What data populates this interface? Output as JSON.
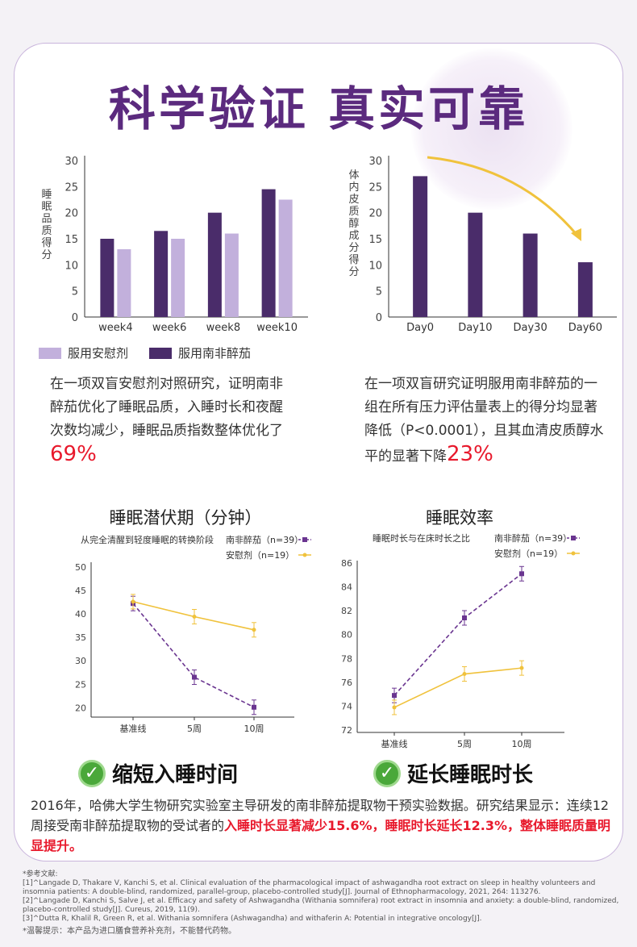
{
  "title": "科学验证 真实可靠",
  "legend": {
    "placebo": "服用安慰剂",
    "ash": "服用南非醉茄"
  },
  "colors": {
    "placebo": "#c2b0dc",
    "ash": "#4a2c6a",
    "line_ash": "#6a3590",
    "line_placebo": "#f0c23c",
    "arrow": "#f0c23c"
  },
  "para1": {
    "text": "在一项双盲安慰剂对照研究，证明南非醉茄优化了睡眠品质，入睡时长和夜醒次数均减少，睡眠品质指数整体优化了",
    "highlight": "69%"
  },
  "para2": {
    "text": "在一项双盲研究证明服用南非醉茄的一组在所有压力评估量表上的得分均显著降低（P<0.0001），且其血清皮质醇水平的显著下降",
    "highlight": "23%"
  },
  "latency": {
    "title": "睡眠潜伏期（分钟）",
    "subtitle": "从完全清醒到轻度睡眠的转换阶段"
  },
  "efficiency": {
    "title": "睡眠效率",
    "subtitle": "睡眠时长与在床时长之比"
  },
  "badges": {
    "left": "缩短入睡时间",
    "right": "延长睡眠时长"
  },
  "summary": {
    "text": "2016年，哈佛大学生物研究实验室主导研发的南非醉茄提取物干预实验数据。研究结果显示：连续12周接受南非醉茄提取物的受试者的",
    "highlight": "入睡时长显著减少15.6%，睡眠时长延长12.3%，整体睡眠质量明显提升。"
  },
  "refs": {
    "head": "*参考文献:",
    "r1": "[1]^Langade D, Thakare V, Kanchi S, et al. Clinical evaluation of the pharmacological impact of ashwagandha root extract on sleep in healthy volunteers and insomnia patients: A double-blind, randomized, parallel-group, placebo-controlled study[J]. Journal of Ethnopharmacology, 2021, 264: 113276.",
    "r2": "[2]^Langade D, Kanchi S, Salve J, et al. Efficacy and safety of Ashwagandha (Withania somnifera) root extract in insomnia and anxiety: a double-blind, randomized, placebo-controlled study[J]. Cureus, 2019, 11(9).",
    "r3": "[3]^Dutta R, Khalil R, Green R, et al. Withania somnifera (Ashwagandha) and withaferin A: Potential in integrative oncology[J].",
    "tip": "*温馨提示：本产品为进口膳食营养补充剂，不能替代药物。"
  },
  "chart_data": [
    {
      "type": "bar",
      "ylabel": "睡眠品质得分",
      "categories": [
        "week4",
        "week6",
        "week8",
        "week10"
      ],
      "ylim": [
        0,
        30
      ],
      "yticks": [
        0,
        5,
        10,
        15,
        20,
        25,
        30
      ],
      "series": [
        {
          "name": "服用南非醉茄",
          "values": [
            15,
            16.5,
            20,
            24.5
          ]
        },
        {
          "name": "服用安慰剂",
          "values": [
            13,
            15,
            16,
            22.5
          ]
        }
      ]
    },
    {
      "type": "bar",
      "ylabel": "体内皮质醇成分得分",
      "categories": [
        "Day0",
        "Day10",
        "Day30",
        "Day60"
      ],
      "ylim": [
        0,
        30
      ],
      "yticks": [
        0,
        5,
        10,
        15,
        20,
        25,
        30
      ],
      "values": [
        27,
        20,
        16,
        10.5
      ]
    },
    {
      "type": "line",
      "title": "睡眠潜伏期（分钟）",
      "categories": [
        "基准线",
        "5周",
        "10周"
      ],
      "ylim": [
        18,
        51
      ],
      "yticks": [
        20,
        25,
        30,
        35,
        40,
        45,
        50
      ],
      "series": [
        {
          "name": "南非醉茄（n=39）",
          "values": [
            42.2,
            26.5,
            20.1
          ]
        },
        {
          "name": "安慰剂（n=19）",
          "values": [
            42.6,
            39.4,
            36.6
          ]
        }
      ]
    },
    {
      "type": "line",
      "title": "睡眠效率",
      "categories": [
        "基准线",
        "5周",
        "10周"
      ],
      "ylim": [
        71.8,
        86.2
      ],
      "yticks": [
        72,
        74,
        76,
        78,
        80,
        82,
        84,
        86
      ],
      "series": [
        {
          "name": "南非醉茄（n=39）",
          "values": [
            74.9,
            81.4,
            85.1
          ]
        },
        {
          "name": "安慰剂（n=19）",
          "values": [
            73.9,
            76.7,
            77.2
          ]
        }
      ]
    }
  ]
}
